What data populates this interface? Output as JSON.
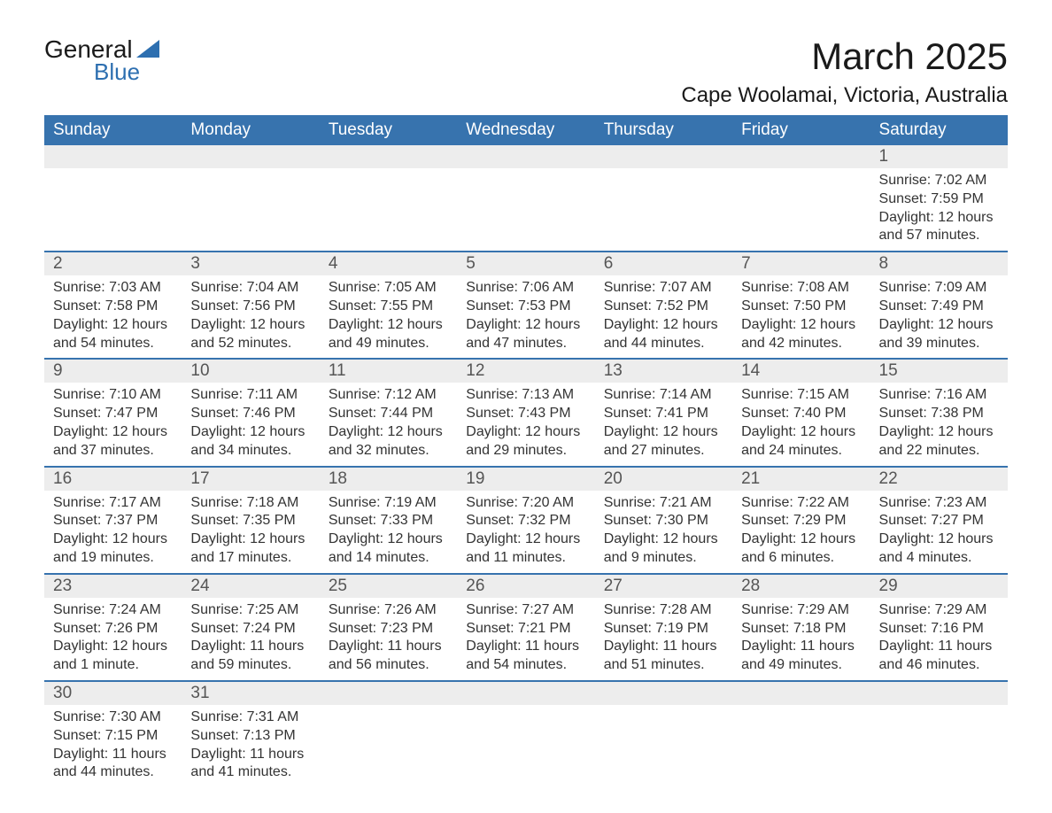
{
  "logo": {
    "word1": "General",
    "word2": "Blue",
    "accent_color": "#2d6fb0"
  },
  "title": {
    "month_year": "March 2025",
    "location": "Cape Woolamai, Victoria, Australia"
  },
  "styling": {
    "header_bg": "#3773ae",
    "header_fg": "#ffffff",
    "daynum_bg": "#ededed",
    "row_divider": "#3773ae",
    "text_color": "#333333",
    "page_bg": "#ffffff",
    "th_fontsize": 19,
    "daynum_fontsize": 19,
    "content_fontsize": 16,
    "title_fontsize": 42,
    "location_fontsize": 24
  },
  "weekdays": [
    "Sunday",
    "Monday",
    "Tuesday",
    "Wednesday",
    "Thursday",
    "Friday",
    "Saturday"
  ],
  "calendar": {
    "start_day_index": 6,
    "days": [
      {
        "n": 1,
        "sunrise": "7:02 AM",
        "sunset": "7:59 PM",
        "daylight": "12 hours and 57 minutes."
      },
      {
        "n": 2,
        "sunrise": "7:03 AM",
        "sunset": "7:58 PM",
        "daylight": "12 hours and 54 minutes."
      },
      {
        "n": 3,
        "sunrise": "7:04 AM",
        "sunset": "7:56 PM",
        "daylight": "12 hours and 52 minutes."
      },
      {
        "n": 4,
        "sunrise": "7:05 AM",
        "sunset": "7:55 PM",
        "daylight": "12 hours and 49 minutes."
      },
      {
        "n": 5,
        "sunrise": "7:06 AM",
        "sunset": "7:53 PM",
        "daylight": "12 hours and 47 minutes."
      },
      {
        "n": 6,
        "sunrise": "7:07 AM",
        "sunset": "7:52 PM",
        "daylight": "12 hours and 44 minutes."
      },
      {
        "n": 7,
        "sunrise": "7:08 AM",
        "sunset": "7:50 PM",
        "daylight": "12 hours and 42 minutes."
      },
      {
        "n": 8,
        "sunrise": "7:09 AM",
        "sunset": "7:49 PM",
        "daylight": "12 hours and 39 minutes."
      },
      {
        "n": 9,
        "sunrise": "7:10 AM",
        "sunset": "7:47 PM",
        "daylight": "12 hours and 37 minutes."
      },
      {
        "n": 10,
        "sunrise": "7:11 AM",
        "sunset": "7:46 PM",
        "daylight": "12 hours and 34 minutes."
      },
      {
        "n": 11,
        "sunrise": "7:12 AM",
        "sunset": "7:44 PM",
        "daylight": "12 hours and 32 minutes."
      },
      {
        "n": 12,
        "sunrise": "7:13 AM",
        "sunset": "7:43 PM",
        "daylight": "12 hours and 29 minutes."
      },
      {
        "n": 13,
        "sunrise": "7:14 AM",
        "sunset": "7:41 PM",
        "daylight": "12 hours and 27 minutes."
      },
      {
        "n": 14,
        "sunrise": "7:15 AM",
        "sunset": "7:40 PM",
        "daylight": "12 hours and 24 minutes."
      },
      {
        "n": 15,
        "sunrise": "7:16 AM",
        "sunset": "7:38 PM",
        "daylight": "12 hours and 22 minutes."
      },
      {
        "n": 16,
        "sunrise": "7:17 AM",
        "sunset": "7:37 PM",
        "daylight": "12 hours and 19 minutes."
      },
      {
        "n": 17,
        "sunrise": "7:18 AM",
        "sunset": "7:35 PM",
        "daylight": "12 hours and 17 minutes."
      },
      {
        "n": 18,
        "sunrise": "7:19 AM",
        "sunset": "7:33 PM",
        "daylight": "12 hours and 14 minutes."
      },
      {
        "n": 19,
        "sunrise": "7:20 AM",
        "sunset": "7:32 PM",
        "daylight": "12 hours and 11 minutes."
      },
      {
        "n": 20,
        "sunrise": "7:21 AM",
        "sunset": "7:30 PM",
        "daylight": "12 hours and 9 minutes."
      },
      {
        "n": 21,
        "sunrise": "7:22 AM",
        "sunset": "7:29 PM",
        "daylight": "12 hours and 6 minutes."
      },
      {
        "n": 22,
        "sunrise": "7:23 AM",
        "sunset": "7:27 PM",
        "daylight": "12 hours and 4 minutes."
      },
      {
        "n": 23,
        "sunrise": "7:24 AM",
        "sunset": "7:26 PM",
        "daylight": "12 hours and 1 minute."
      },
      {
        "n": 24,
        "sunrise": "7:25 AM",
        "sunset": "7:24 PM",
        "daylight": "11 hours and 59 minutes."
      },
      {
        "n": 25,
        "sunrise": "7:26 AM",
        "sunset": "7:23 PM",
        "daylight": "11 hours and 56 minutes."
      },
      {
        "n": 26,
        "sunrise": "7:27 AM",
        "sunset": "7:21 PM",
        "daylight": "11 hours and 54 minutes."
      },
      {
        "n": 27,
        "sunrise": "7:28 AM",
        "sunset": "7:19 PM",
        "daylight": "11 hours and 51 minutes."
      },
      {
        "n": 28,
        "sunrise": "7:29 AM",
        "sunset": "7:18 PM",
        "daylight": "11 hours and 49 minutes."
      },
      {
        "n": 29,
        "sunrise": "7:29 AM",
        "sunset": "7:16 PM",
        "daylight": "11 hours and 46 minutes."
      },
      {
        "n": 30,
        "sunrise": "7:30 AM",
        "sunset": "7:15 PM",
        "daylight": "11 hours and 44 minutes."
      },
      {
        "n": 31,
        "sunrise": "7:31 AM",
        "sunset": "7:13 PM",
        "daylight": "11 hours and 41 minutes."
      }
    ],
    "labels": {
      "sunrise": "Sunrise:",
      "sunset": "Sunset:",
      "daylight": "Daylight:"
    }
  }
}
